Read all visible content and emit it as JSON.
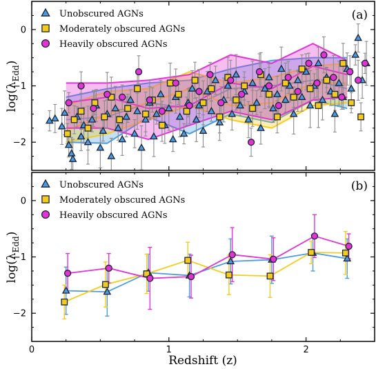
{
  "chart_data": [
    {
      "panel": "a",
      "type": "scatter",
      "panel_label": "(a)",
      "ylabel_base": "log(λ",
      "ylabel_sub": "Edd",
      "ylabel_close": ")",
      "xlim": [
        0,
        2.5
      ],
      "ylim": [
        -2.5,
        0.5
      ],
      "yticks": [
        {
          "v": 0,
          "label": "0"
        },
        {
          "v": -1,
          "label": "−1"
        },
        {
          "v": -2,
          "label": "−2"
        }
      ],
      "xticks": [
        0,
        1,
        2
      ],
      "legend_placement": "top-left",
      "series": [
        {
          "name": "Unobscured AGNs",
          "marker": "triangle",
          "color": "#4a9be0",
          "points": [
            [
              0.13,
              -1.62
            ],
            [
              0.17,
              -1.58
            ],
            [
              0.22,
              -1.72
            ],
            [
              0.24,
              -1.48
            ],
            [
              0.27,
              -2.05
            ],
            [
              0.29,
              -2.2
            ],
            [
              0.3,
              -2.3
            ],
            [
              0.33,
              -1.55
            ],
            [
              0.36,
              -1.9
            ],
            [
              0.38,
              -1.7
            ],
            [
              0.41,
              -2.0
            ],
            [
              0.44,
              -1.6
            ],
            [
              0.47,
              -1.35
            ],
            [
              0.5,
              -2.1
            ],
            [
              0.52,
              -1.8
            ],
            [
              0.55,
              -1.5
            ],
            [
              0.58,
              -2.25
            ],
            [
              0.61,
              -1.4
            ],
            [
              0.63,
              -1.75
            ],
            [
              0.66,
              -1.95
            ],
            [
              0.69,
              -1.55
            ],
            [
              0.72,
              -1.25
            ],
            [
              0.75,
              -1.85
            ],
            [
              0.77,
              -1.45
            ],
            [
              0.8,
              -2.1
            ],
            [
              0.83,
              -1.6
            ],
            [
              0.86,
              -1.3
            ],
            [
              0.89,
              -1.9
            ],
            [
              0.91,
              -1.5
            ],
            [
              0.94,
              -1.15
            ],
            [
              0.97,
              -1.7
            ],
            [
              1.0,
              -1.4
            ],
            [
              1.03,
              -1.95
            ],
            [
              1.05,
              -1.2
            ],
            [
              1.08,
              -1.55
            ],
            [
              1.11,
              -1.85
            ],
            [
              1.14,
              -1.3
            ],
            [
              1.17,
              -1.05
            ],
            [
              1.2,
              -1.6
            ],
            [
              1.22,
              -1.35
            ],
            [
              1.25,
              -1.8
            ],
            [
              1.28,
              -1.1
            ],
            [
              1.31,
              -1.45
            ],
            [
              1.34,
              -0.9
            ],
            [
              1.37,
              -1.65
            ],
            [
              1.4,
              -1.25
            ],
            [
              1.43,
              -1.0
            ],
            [
              1.46,
              -1.5
            ],
            [
              1.49,
              -0.8
            ],
            [
              1.52,
              -1.35
            ],
            [
              1.55,
              -1.1
            ],
            [
              1.58,
              -1.6
            ],
            [
              1.61,
              -0.95
            ],
            [
              1.64,
              -1.3
            ],
            [
              1.67,
              -1.75
            ],
            [
              1.7,
              -1.05
            ],
            [
              1.73,
              -0.85
            ],
            [
              1.76,
              -1.4
            ],
            [
              1.79,
              -1.15
            ],
            [
              1.82,
              -0.7
            ],
            [
              1.85,
              -1.25
            ],
            [
              1.88,
              -1.0
            ],
            [
              1.91,
              -1.5
            ],
            [
              1.94,
              -0.9
            ],
            [
              1.97,
              -1.2
            ],
            [
              2.0,
              -0.75
            ],
            [
              2.03,
              -1.35
            ],
            [
              2.06,
              -1.0
            ],
            [
              2.09,
              -0.6
            ],
            [
              2.12,
              -1.25
            ],
            [
              2.15,
              -0.85
            ],
            [
              2.18,
              -1.1
            ],
            [
              2.21,
              -1.5
            ],
            [
              2.24,
              -0.95
            ],
            [
              2.27,
              -1.2
            ],
            [
              2.3,
              -0.7
            ],
            [
              2.33,
              -1.05
            ],
            [
              2.36,
              -0.45
            ],
            [
              2.38,
              -0.15
            ],
            [
              2.41,
              -0.9
            ],
            [
              2.44,
              -0.6
            ]
          ]
        },
        {
          "name": "Moderately obscured AGNs",
          "marker": "square",
          "color": "#f5cc1b",
          "points": [
            [
              0.26,
              -1.85
            ],
            [
              0.31,
              -1.6
            ],
            [
              0.36,
              -1.45
            ],
            [
              0.41,
              -1.75
            ],
            [
              0.46,
              -1.3
            ],
            [
              0.53,
              -1.55
            ],
            [
              0.58,
              -1.2
            ],
            [
              0.64,
              -1.6
            ],
            [
              0.7,
              -1.4
            ],
            [
              0.77,
              -1.05
            ],
            [
              0.83,
              -1.5
            ],
            [
              0.88,
              -1.25
            ],
            [
              0.95,
              -1.7
            ],
            [
              1.01,
              -0.95
            ],
            [
              1.07,
              -1.15
            ],
            [
              1.13,
              -1.45
            ],
            [
              1.19,
              -0.9
            ],
            [
              1.25,
              -1.3
            ],
            [
              1.31,
              -1.05
            ],
            [
              1.37,
              -1.55
            ],
            [
              1.43,
              -0.85
            ],
            [
              1.49,
              -1.25
            ],
            [
              1.55,
              -1.0
            ],
            [
              1.61,
              -1.4
            ],
            [
              1.67,
              -0.8
            ],
            [
              1.73,
              -1.15
            ],
            [
              1.79,
              -1.55
            ],
            [
              1.85,
              -0.95
            ],
            [
              1.91,
              -1.2
            ],
            [
              1.97,
              -0.7
            ],
            [
              2.03,
              -1.05
            ],
            [
              2.09,
              -1.35
            ],
            [
              2.15,
              -0.9
            ],
            [
              2.21,
              -1.15
            ],
            [
              2.27,
              -0.6
            ],
            [
              2.33,
              -1.3
            ],
            [
              2.4,
              -1.55
            ]
          ]
        },
        {
          "name": "Heavily obscured AGNs",
          "marker": "circle",
          "color": "#e233d4",
          "points": [
            [
              0.27,
              -1.3
            ],
            [
              0.36,
              -1.0
            ],
            [
              0.45,
              -1.4
            ],
            [
              0.55,
              -1.15
            ],
            [
              0.66,
              -1.2
            ],
            [
              0.78,
              -0.75
            ],
            [
              0.86,
              -1.25
            ],
            [
              0.95,
              -1.45
            ],
            [
              1.05,
              -0.95
            ],
            [
              1.15,
              -1.35
            ],
            [
              1.22,
              -1.1
            ],
            [
              1.3,
              -0.8
            ],
            [
              1.38,
              -1.3
            ],
            [
              1.45,
              -0.9
            ],
            [
              1.53,
              -1.15
            ],
            [
              1.6,
              -2.0
            ],
            [
              1.66,
              -0.75
            ],
            [
              1.73,
              -1.0
            ],
            [
              1.8,
              -1.35
            ],
            [
              1.87,
              -0.85
            ],
            [
              1.94,
              -1.1
            ],
            [
              2.02,
              -0.6
            ],
            [
              2.08,
              -0.95
            ],
            [
              2.13,
              -0.45
            ],
            [
              2.2,
              -0.85
            ],
            [
              2.26,
              -1.2
            ],
            [
              2.32,
              -0.75
            ],
            [
              2.38,
              -0.9
            ],
            [
              2.43,
              -0.6
            ]
          ]
        }
      ],
      "bands": [
        {
          "name": "Unobscured AGNs",
          "color": "#4a9be0",
          "x": [
            0.25,
            0.55,
            0.85,
            1.15,
            1.45,
            1.75,
            2.05,
            2.3
          ],
          "median": [
            -1.6,
            -1.55,
            -1.3,
            -1.4,
            -1.05,
            -1.0,
            -0.9,
            -1.05
          ],
          "upper": [
            -1.2,
            -1.05,
            -0.95,
            -0.9,
            -0.7,
            -0.55,
            -0.5,
            -0.5
          ],
          "lower": [
            -2.0,
            -2.02,
            -1.55,
            -1.85,
            -1.5,
            -1.65,
            -1.25,
            -1.4
          ]
        },
        {
          "name": "Moderately obscured AGNs",
          "color": "#f5cc1b",
          "x": [
            0.25,
            0.55,
            0.85,
            1.15,
            1.45,
            1.75,
            2.05,
            2.3
          ],
          "median": [
            -1.8,
            -1.5,
            -1.3,
            -1.05,
            -1.35,
            -1.3,
            -0.95,
            -0.95
          ],
          "upper": [
            -1.35,
            -1.1,
            -1.05,
            -0.75,
            -0.95,
            -0.85,
            -0.65,
            -0.6
          ],
          "lower": [
            -2.0,
            -1.85,
            -1.6,
            -1.35,
            -1.6,
            -1.75,
            -1.35,
            -1.3
          ]
        },
        {
          "name": "Heavily obscured AGNs",
          "color": "#e233d4",
          "x": [
            0.25,
            0.55,
            0.85,
            1.15,
            1.45,
            1.75,
            2.05,
            2.3
          ],
          "median": [
            -1.3,
            -1.2,
            -1.4,
            -1.35,
            -0.95,
            -1.05,
            -0.65,
            -0.8
          ],
          "upper": [
            -0.95,
            -0.95,
            -0.9,
            -0.8,
            -0.45,
            -0.6,
            -0.25,
            -0.55
          ],
          "lower": [
            -1.75,
            -1.75,
            -1.95,
            -1.7,
            -1.45,
            -1.6,
            -1.25,
            -1.2
          ]
        }
      ]
    },
    {
      "panel": "b",
      "type": "line",
      "panel_label": "(b)",
      "ylabel_base": "log(λ",
      "ylabel_sub": "Edd",
      "ylabel_close": ")",
      "xlabel": "Redshift (z)",
      "xlim": [
        0,
        2.5
      ],
      "ylim": [
        -2.5,
        0.5
      ],
      "yticks": [
        {
          "v": 0,
          "label": "0"
        },
        {
          "v": -1,
          "label": "−1"
        },
        {
          "v": -2,
          "label": "−2"
        }
      ],
      "xticks": [
        {
          "v": 0,
          "label": "0"
        },
        {
          "v": 1,
          "label": "1"
        },
        {
          "v": 2,
          "label": "2"
        }
      ],
      "legend_placement": "top-left",
      "series": [
        {
          "name": "Unobscured AGNs",
          "marker": "triangle",
          "color": "#4a9be0",
          "offset": 0.0,
          "x": [
            0.25,
            0.55,
            0.85,
            1.15,
            1.45,
            1.75,
            2.05,
            2.3
          ],
          "y": [
            -1.6,
            -1.62,
            -1.28,
            -1.33,
            -1.08,
            -1.05,
            -0.93,
            -1.03
          ],
          "err": [
            0.42,
            0.43,
            0.33,
            0.38,
            0.4,
            0.42,
            0.32,
            0.35
          ]
        },
        {
          "name": "Moderately obscured AGNs",
          "marker": "square",
          "color": "#f5cc1b",
          "offset": -0.012,
          "x": [
            0.25,
            0.55,
            0.85,
            1.15,
            1.45,
            1.75,
            2.05,
            2.3
          ],
          "y": [
            -1.8,
            -1.49,
            -1.3,
            -1.06,
            -1.32,
            -1.34,
            -0.92,
            -0.93
          ],
          "err": [
            0.3,
            0.4,
            0.35,
            0.32,
            0.35,
            0.38,
            0.2,
            0.38
          ]
        },
        {
          "name": "Heavily obscured AGNs",
          "marker": "circle",
          "color": "#e233d4",
          "offset": 0.012,
          "x": [
            0.25,
            0.55,
            0.85,
            1.15,
            1.45,
            1.75,
            2.05,
            2.3
          ],
          "y": [
            -1.29,
            -1.2,
            -1.38,
            -1.35,
            -0.96,
            -1.04,
            -0.63,
            -0.81
          ],
          "err": [
            0.35,
            0.26,
            0.55,
            0.38,
            0.48,
            0.38,
            0.38,
            0.22
          ]
        }
      ]
    }
  ]
}
